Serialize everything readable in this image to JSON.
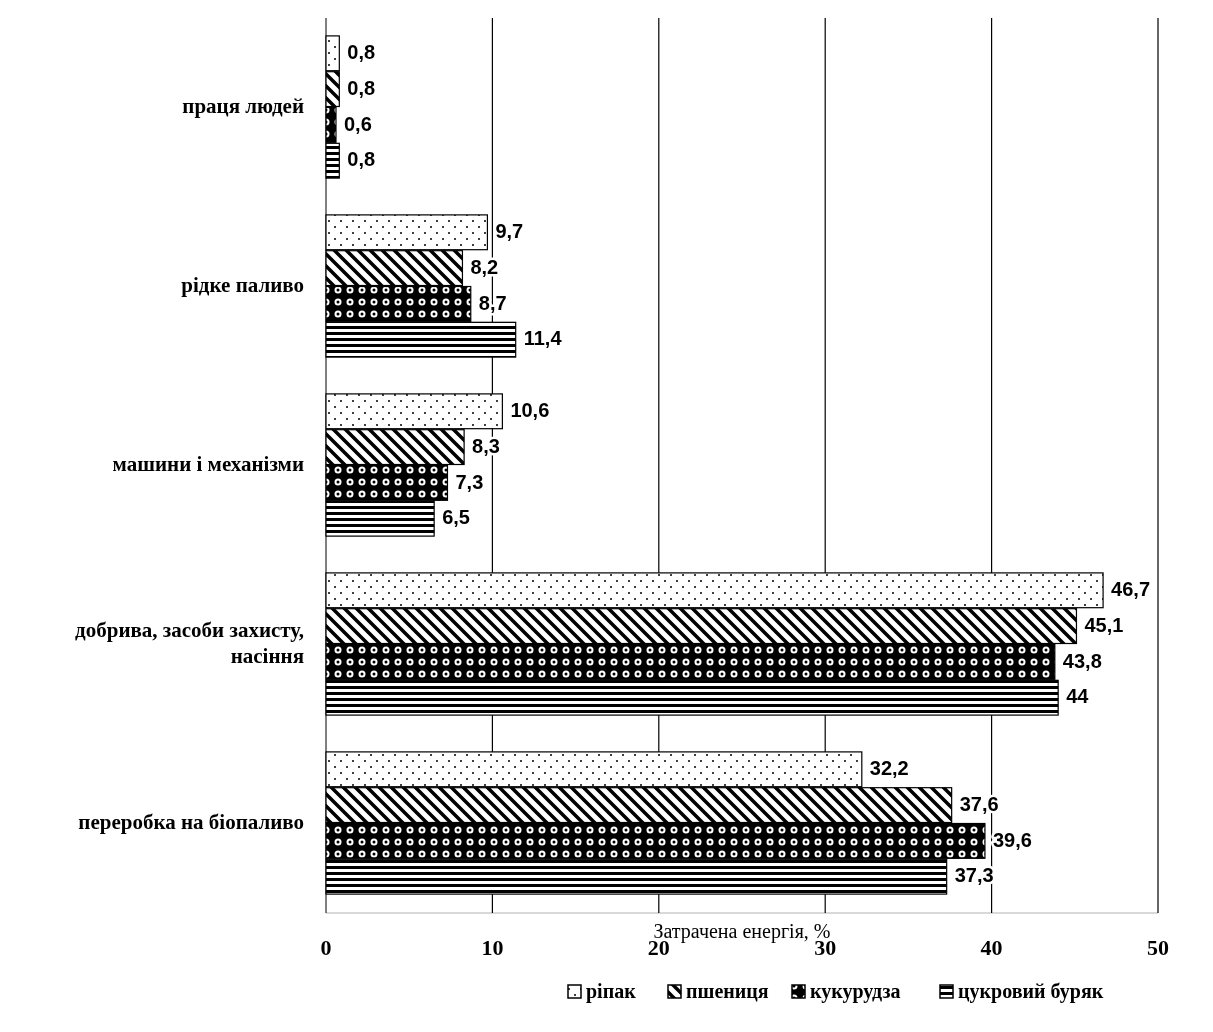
{
  "chart_data": {
    "type": "bar",
    "orientation": "horizontal",
    "xlabel": "Затрачена енергія, %",
    "categories": [
      "праця людей",
      "рідке паливо",
      "машини і механізми",
      "добрива, засоби захисту, насіння",
      "переробка на біопаливо"
    ],
    "series": [
      {
        "name": "ріпак",
        "color": "#000000",
        "values": [
          0.8,
          9.7,
          10.6,
          46.7,
          32.2
        ],
        "value_labels": [
          "0,8",
          "9,7",
          "10,6",
          "46,7",
          "32,2"
        ]
      },
      {
        "name": "пшениця",
        "color": "#000000",
        "values": [
          0.8,
          8.2,
          8.3,
          45.1,
          37.6
        ],
        "value_labels": [
          "0,8",
          "8,2",
          "8,3",
          "45,1",
          "37,6"
        ]
      },
      {
        "name": "кукурудза",
        "color": "#000000",
        "values": [
          0.6,
          8.7,
          7.3,
          43.8,
          39.6
        ],
        "value_labels": [
          "0,6",
          "8,7",
          "7,3",
          "43,8",
          "39,6"
        ]
      },
      {
        "name": "цукровий буряк",
        "color": "#000000",
        "values": [
          0.8,
          11.4,
          6.5,
          44,
          37.3
        ],
        "value_labels": [
          "0,8",
          "11,4",
          "6,5",
          "44",
          "37,3"
        ]
      }
    ],
    "xlim": [
      0,
      50
    ],
    "xticks": [
      0,
      10,
      20,
      30,
      40,
      50
    ],
    "grid": "x",
    "legend": "bottom"
  }
}
